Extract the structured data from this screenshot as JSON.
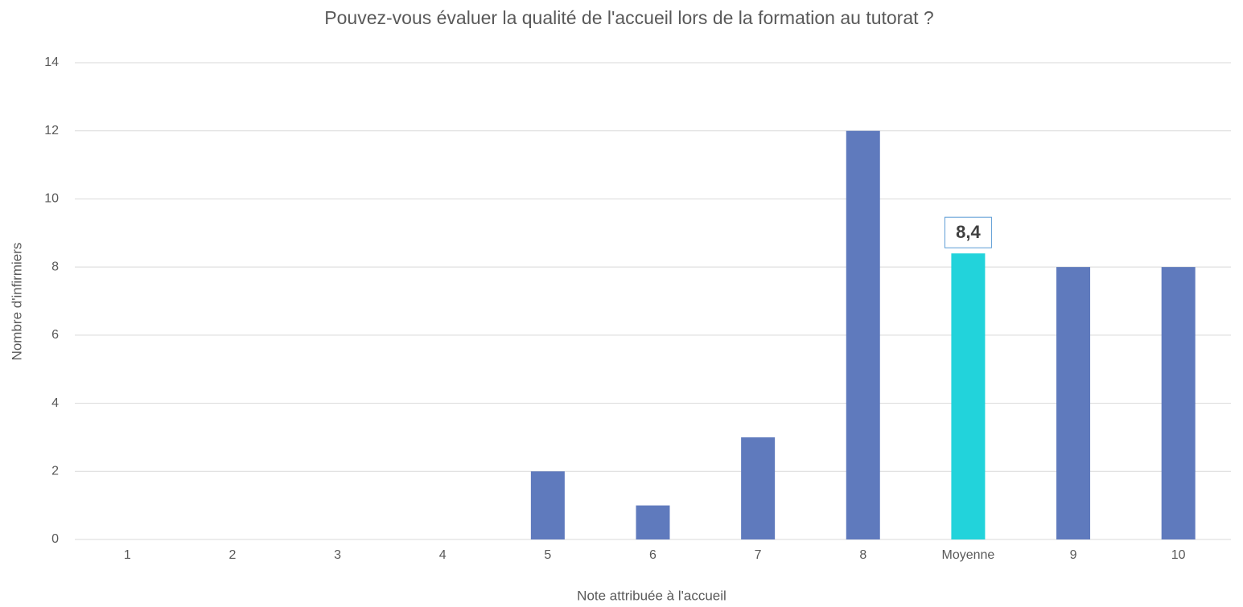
{
  "chart_data": {
    "type": "bar",
    "title": "Pouvez-vous évaluer la qualité de l'accueil lors de la formation au tutorat ?",
    "x_label": "Note attribuée à l'accueil",
    "y_label": "Nombre d'infirmiers",
    "categories": [
      "1",
      "2",
      "3",
      "4",
      "5",
      "6",
      "7",
      "8",
      "Moyenne",
      "9",
      "10"
    ],
    "values": [
      0,
      0,
      0,
      0,
      2,
      1,
      3,
      12,
      8.4,
      8,
      8
    ],
    "value_labels": [
      null,
      null,
      null,
      null,
      null,
      null,
      null,
      null,
      "8,4",
      null,
      null
    ],
    "colors": [
      "#5f7abd",
      "#5f7abd",
      "#5f7abd",
      "#5f7abd",
      "#5f7abd",
      "#5f7abd",
      "#5f7abd",
      "#5f7abd",
      "#22d3db",
      "#5f7abd",
      "#5f7abd"
    ],
    "ylim": [
      0,
      14
    ],
    "yticks": [
      0,
      2,
      4,
      6,
      8,
      10,
      12,
      14
    ],
    "grid": true
  }
}
